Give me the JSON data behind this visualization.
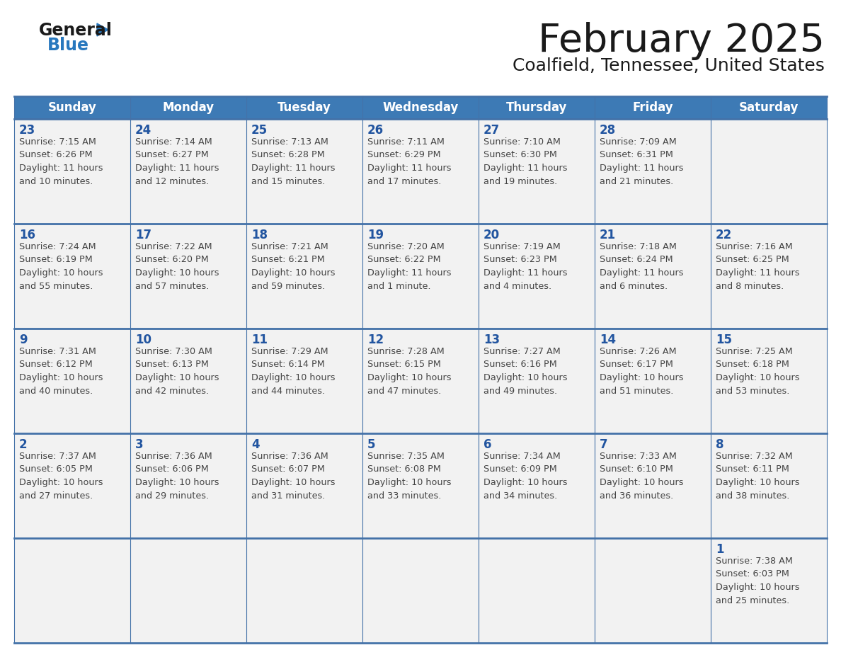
{
  "title": "February 2025",
  "subtitle": "Coalfield, Tennessee, United States",
  "header_bg_color": "#3D7AB5",
  "header_text_color": "#FFFFFF",
  "cell_bg_color": "#F2F2F2",
  "day_headers": [
    "Sunday",
    "Monday",
    "Tuesday",
    "Wednesday",
    "Thursday",
    "Friday",
    "Saturday"
  ],
  "title_color": "#1a1a1a",
  "subtitle_color": "#1a1a1a",
  "day_num_color": "#2255A0",
  "info_color": "#444444",
  "border_color": "#4472A8",
  "row_separator_color": "#4472A8",
  "logo_general_color": "#1a1a1a",
  "logo_blue_color": "#2878BE",
  "weeks": [
    [
      {
        "day": null,
        "sunrise": null,
        "sunset": null,
        "daylight": null
      },
      {
        "day": null,
        "sunrise": null,
        "sunset": null,
        "daylight": null
      },
      {
        "day": null,
        "sunrise": null,
        "sunset": null,
        "daylight": null
      },
      {
        "day": null,
        "sunrise": null,
        "sunset": null,
        "daylight": null
      },
      {
        "day": null,
        "sunrise": null,
        "sunset": null,
        "daylight": null
      },
      {
        "day": null,
        "sunrise": null,
        "sunset": null,
        "daylight": null
      },
      {
        "day": 1,
        "sunrise": "7:38 AM",
        "sunset": "6:03 PM",
        "daylight": "10 hours and 25 minutes."
      }
    ],
    [
      {
        "day": 2,
        "sunrise": "7:37 AM",
        "sunset": "6:05 PM",
        "daylight": "10 hours and 27 minutes."
      },
      {
        "day": 3,
        "sunrise": "7:36 AM",
        "sunset": "6:06 PM",
        "daylight": "10 hours and 29 minutes."
      },
      {
        "day": 4,
        "sunrise": "7:36 AM",
        "sunset": "6:07 PM",
        "daylight": "10 hours and 31 minutes."
      },
      {
        "day": 5,
        "sunrise": "7:35 AM",
        "sunset": "6:08 PM",
        "daylight": "10 hours and 33 minutes."
      },
      {
        "day": 6,
        "sunrise": "7:34 AM",
        "sunset": "6:09 PM",
        "daylight": "10 hours and 34 minutes."
      },
      {
        "day": 7,
        "sunrise": "7:33 AM",
        "sunset": "6:10 PM",
        "daylight": "10 hours and 36 minutes."
      },
      {
        "day": 8,
        "sunrise": "7:32 AM",
        "sunset": "6:11 PM",
        "daylight": "10 hours and 38 minutes."
      }
    ],
    [
      {
        "day": 9,
        "sunrise": "7:31 AM",
        "sunset": "6:12 PM",
        "daylight": "10 hours and 40 minutes."
      },
      {
        "day": 10,
        "sunrise": "7:30 AM",
        "sunset": "6:13 PM",
        "daylight": "10 hours and 42 minutes."
      },
      {
        "day": 11,
        "sunrise": "7:29 AM",
        "sunset": "6:14 PM",
        "daylight": "10 hours and 44 minutes."
      },
      {
        "day": 12,
        "sunrise": "7:28 AM",
        "sunset": "6:15 PM",
        "daylight": "10 hours and 47 minutes."
      },
      {
        "day": 13,
        "sunrise": "7:27 AM",
        "sunset": "6:16 PM",
        "daylight": "10 hours and 49 minutes."
      },
      {
        "day": 14,
        "sunrise": "7:26 AM",
        "sunset": "6:17 PM",
        "daylight": "10 hours and 51 minutes."
      },
      {
        "day": 15,
        "sunrise": "7:25 AM",
        "sunset": "6:18 PM",
        "daylight": "10 hours and 53 minutes."
      }
    ],
    [
      {
        "day": 16,
        "sunrise": "7:24 AM",
        "sunset": "6:19 PM",
        "daylight": "10 hours and 55 minutes."
      },
      {
        "day": 17,
        "sunrise": "7:22 AM",
        "sunset": "6:20 PM",
        "daylight": "10 hours and 57 minutes."
      },
      {
        "day": 18,
        "sunrise": "7:21 AM",
        "sunset": "6:21 PM",
        "daylight": "10 hours and 59 minutes."
      },
      {
        "day": 19,
        "sunrise": "7:20 AM",
        "sunset": "6:22 PM",
        "daylight": "11 hours and 1 minute."
      },
      {
        "day": 20,
        "sunrise": "7:19 AM",
        "sunset": "6:23 PM",
        "daylight": "11 hours and 4 minutes."
      },
      {
        "day": 21,
        "sunrise": "7:18 AM",
        "sunset": "6:24 PM",
        "daylight": "11 hours and 6 minutes."
      },
      {
        "day": 22,
        "sunrise": "7:16 AM",
        "sunset": "6:25 PM",
        "daylight": "11 hours and 8 minutes."
      }
    ],
    [
      {
        "day": 23,
        "sunrise": "7:15 AM",
        "sunset": "6:26 PM",
        "daylight": "11 hours and 10 minutes."
      },
      {
        "day": 24,
        "sunrise": "7:14 AM",
        "sunset": "6:27 PM",
        "daylight": "11 hours and 12 minutes."
      },
      {
        "day": 25,
        "sunrise": "7:13 AM",
        "sunset": "6:28 PM",
        "daylight": "11 hours and 15 minutes."
      },
      {
        "day": 26,
        "sunrise": "7:11 AM",
        "sunset": "6:29 PM",
        "daylight": "11 hours and 17 minutes."
      },
      {
        "day": 27,
        "sunrise": "7:10 AM",
        "sunset": "6:30 PM",
        "daylight": "11 hours and 19 minutes."
      },
      {
        "day": 28,
        "sunrise": "7:09 AM",
        "sunset": "6:31 PM",
        "daylight": "11 hours and 21 minutes."
      },
      {
        "day": null,
        "sunrise": null,
        "sunset": null,
        "daylight": null
      }
    ]
  ]
}
